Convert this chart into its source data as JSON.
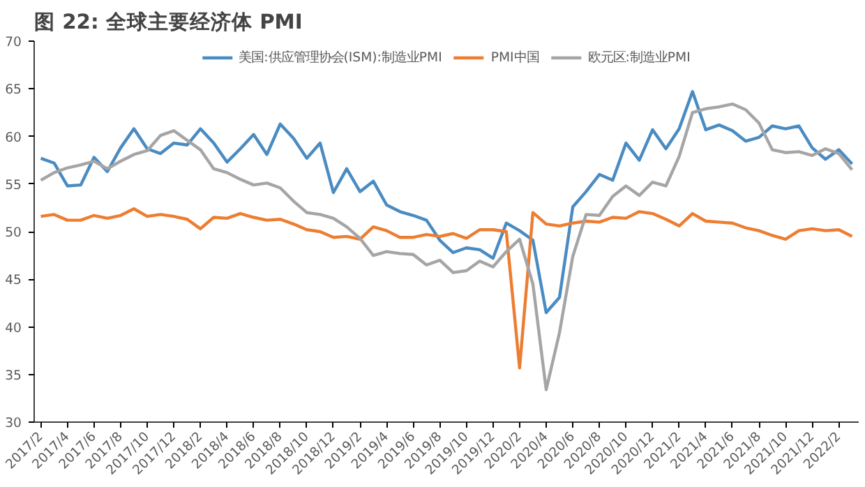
{
  "chart_data": {
    "type": "line",
    "title": "图 22: 全球主要经济体 PMI",
    "categories": [
      "2017/2",
      null,
      "2017/4",
      null,
      "2017/6",
      null,
      "2017/8",
      null,
      "2017/10",
      null,
      "2017/12",
      null,
      "2018/2",
      null,
      "2018/4",
      null,
      "2018/6",
      null,
      "2018/8",
      null,
      "2018/10",
      null,
      "2018/12",
      null,
      "2019/2",
      null,
      "2019/4",
      null,
      "2019/6",
      null,
      "2019/8",
      null,
      "2019/10",
      null,
      "2019/12",
      null,
      "2020/2",
      null,
      "2020/4",
      null,
      "2020/6",
      null,
      "2020/8",
      null,
      "2020/10",
      null,
      "2020/12",
      null,
      "2021/2",
      null,
      "2021/4",
      null,
      "2021/6",
      null,
      "2021/8",
      null,
      "2021/10",
      null,
      "2021/12",
      null,
      "2022/2",
      null
    ],
    "series": [
      {
        "name": "美国:供应管理协会(ISM):制造业PMI",
        "color": "#4a8bc2",
        "values": [
          57.7,
          57.2,
          54.8,
          54.9,
          57.8,
          56.3,
          58.8,
          60.8,
          58.7,
          58.2,
          59.3,
          59.1,
          60.8,
          59.3,
          57.3,
          58.7,
          60.2,
          58.1,
          61.3,
          59.8,
          57.7,
          59.3,
          54.1,
          56.6,
          54.2,
          55.3,
          52.8,
          52.1,
          51.7,
          51.2,
          49.1,
          47.8,
          48.3,
          48.1,
          47.2,
          50.9,
          50.1,
          49.1,
          41.5,
          43.1,
          52.6,
          54.2,
          56.0,
          55.4,
          59.3,
          57.5,
          60.7,
          58.7,
          60.8,
          64.7,
          60.7,
          61.2,
          60.6,
          59.5,
          59.9,
          61.1,
          60.8,
          61.1,
          58.8,
          57.6,
          58.6,
          57.1
        ]
      },
      {
        "name": "PMI中国",
        "color": "#ed7d31",
        "values": [
          51.6,
          51.8,
          51.2,
          51.2,
          51.7,
          51.4,
          51.7,
          52.4,
          51.6,
          51.8,
          51.6,
          51.3,
          50.3,
          51.5,
          51.4,
          51.9,
          51.5,
          51.2,
          51.3,
          50.8,
          50.2,
          50.0,
          49.4,
          49.5,
          49.2,
          50.5,
          50.1,
          49.4,
          49.4,
          49.7,
          49.5,
          49.8,
          49.3,
          50.2,
          50.2,
          50.0,
          35.7,
          52.0,
          50.8,
          50.6,
          50.9,
          51.1,
          51.0,
          51.5,
          51.4,
          52.1,
          51.9,
          51.3,
          50.6,
          51.9,
          51.1,
          51.0,
          50.9,
          50.4,
          50.1,
          49.6,
          49.2,
          50.1,
          50.3,
          50.1,
          50.2,
          49.5
        ]
      },
      {
        "name": "欧元区:制造业PMI",
        "color": "#a5a5a5",
        "values": [
          55.4,
          56.2,
          56.7,
          57.0,
          57.4,
          56.6,
          57.4,
          58.1,
          58.5,
          60.1,
          60.6,
          59.6,
          58.6,
          56.6,
          56.2,
          55.5,
          54.9,
          55.1,
          54.6,
          53.2,
          52.0,
          51.8,
          51.4,
          50.5,
          49.3,
          47.5,
          47.9,
          47.7,
          47.6,
          46.5,
          47.0,
          45.7,
          45.9,
          46.9,
          46.3,
          47.9,
          49.2,
          44.5,
          33.4,
          39.4,
          47.4,
          51.8,
          51.7,
          53.7,
          54.8,
          53.8,
          55.2,
          54.8,
          57.9,
          62.5,
          62.9,
          63.1,
          63.4,
          62.8,
          61.4,
          58.6,
          58.3,
          58.4,
          58.0,
          58.7,
          58.2,
          56.5
        ]
      }
    ],
    "ylim": [
      30,
      70
    ],
    "yticks": [
      30,
      35,
      40,
      45,
      50,
      55,
      60,
      65,
      70
    ],
    "grid": false,
    "legend": "top",
    "marker": "none",
    "line_style": "solid"
  }
}
